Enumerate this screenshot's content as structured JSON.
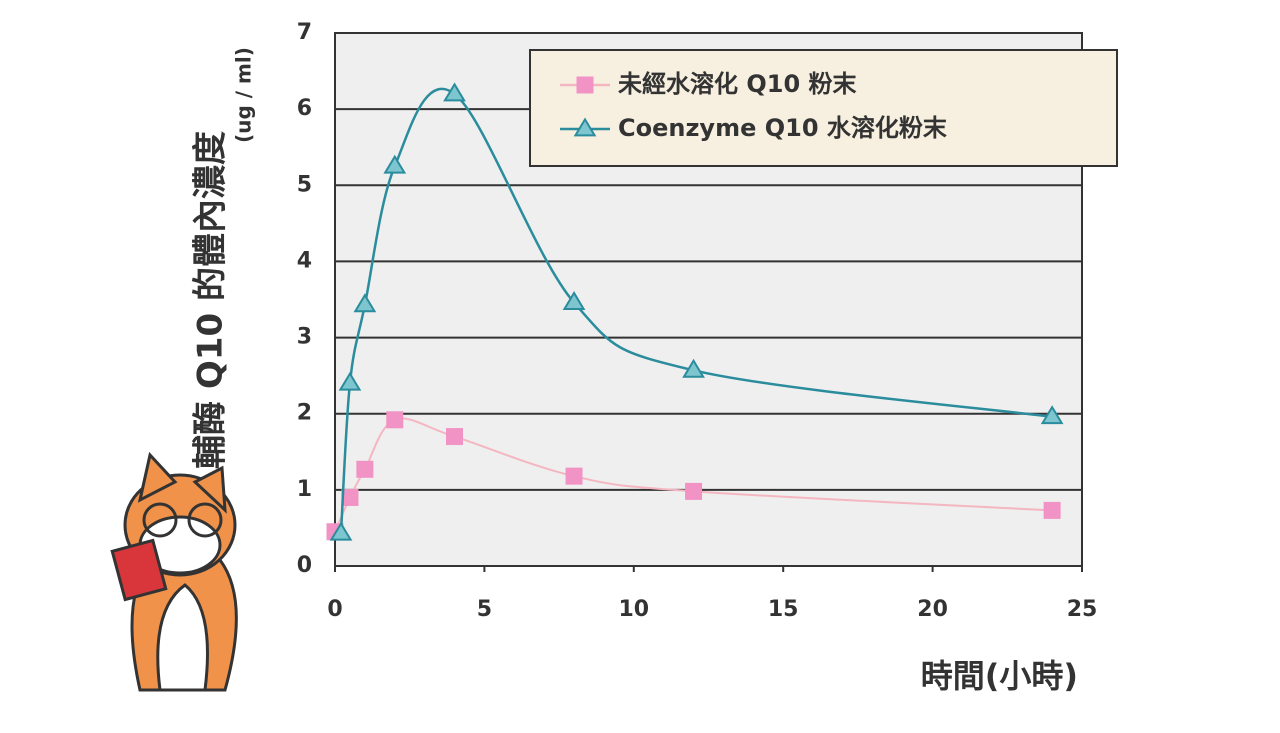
{
  "chart_data": {
    "type": "line",
    "y_label": "輔酶 Q10 的體內濃度",
    "y_unit": "(ug / ml)",
    "x_label": "時間(小時)",
    "xlim": [
      0,
      25
    ],
    "xticks": [
      0,
      5,
      10,
      15,
      20,
      25
    ],
    "ylim": [
      0,
      7
    ],
    "yticks": [
      0,
      1,
      2,
      3,
      4,
      5,
      6,
      7
    ],
    "grid": true,
    "legend": "upper right",
    "series": [
      {
        "name": "未經水溶化 Q10 粉末",
        "color": "#f4b7c1",
        "marker": "square",
        "marker_color": "#f193c4",
        "x": [
          0,
          0.5,
          1,
          2,
          4,
          8,
          12,
          24
        ],
        "values": [
          0.45,
          0.9,
          1.27,
          1.92,
          1.7,
          1.18,
          0.98,
          0.73
        ]
      },
      {
        "name": "Coenzyme Q10 水溶化粉末",
        "color": "#2a8c9c",
        "marker": "triangle",
        "marker_color": "#7ec6cf",
        "x": [
          0.2,
          0.5,
          1,
          2,
          4,
          8,
          12,
          24
        ],
        "values": [
          0.43,
          2.4,
          3.43,
          5.25,
          6.2,
          3.46,
          2.57,
          1.96
        ]
      }
    ]
  }
}
